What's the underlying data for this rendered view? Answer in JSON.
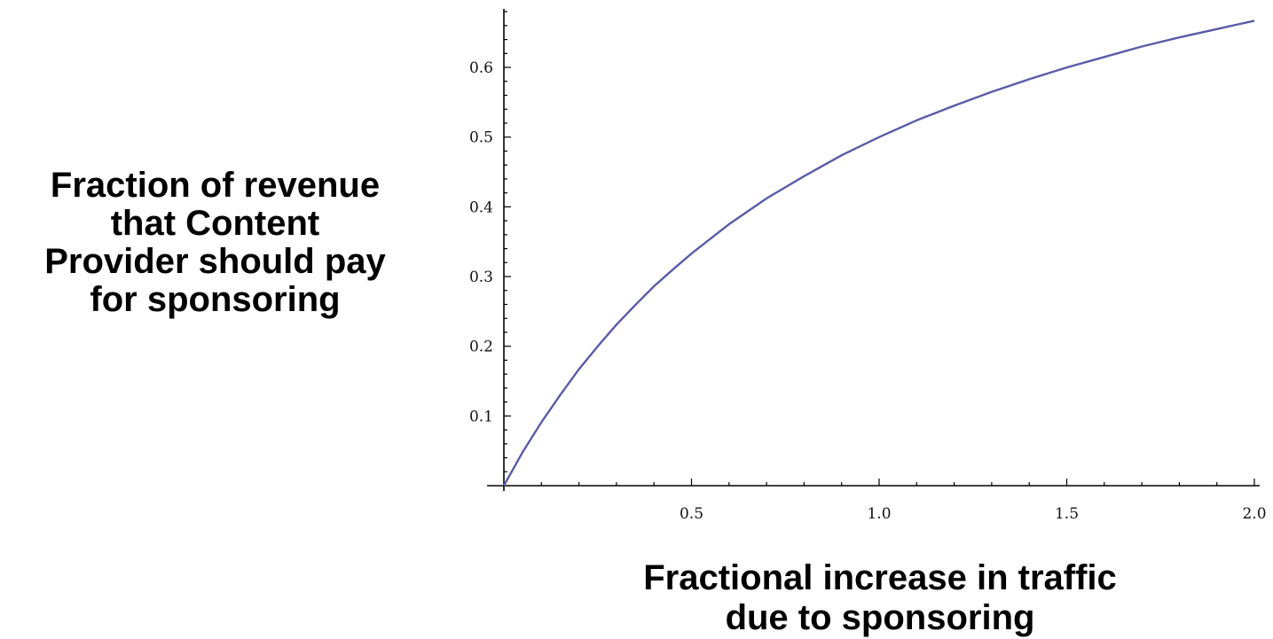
{
  "chart_data": {
    "type": "line",
    "title": "",
    "ylabel_lines": [
      "Fraction of revenue",
      "that Content",
      "Provider should pay",
      "for sponsoring"
    ],
    "xlabel_lines": [
      "Fractional increase in traffic",
      "due to sponsoring"
    ],
    "xlim": [
      0,
      2.0
    ],
    "ylim": [
      0,
      0.67
    ],
    "x_ticks": [
      {
        "value": 0.5,
        "label": "0.5"
      },
      {
        "value": 1.0,
        "label": "1.0"
      },
      {
        "value": 1.5,
        "label": "1.5"
      },
      {
        "value": 2.0,
        "label": "2.0"
      }
    ],
    "y_ticks": [
      {
        "value": 0.1,
        "label": "0.1"
      },
      {
        "value": 0.2,
        "label": "0.2"
      },
      {
        "value": 0.3,
        "label": "0.3"
      },
      {
        "value": 0.4,
        "label": "0.4"
      },
      {
        "value": 0.5,
        "label": "0.5"
      },
      {
        "value": 0.6,
        "label": "0.6"
      }
    ],
    "grid": false,
    "line_color": "#5b5ba8",
    "series": [
      {
        "x": [
          0,
          0.05,
          0.1,
          0.15,
          0.2,
          0.25,
          0.3,
          0.35,
          0.4,
          0.45,
          0.5,
          0.6,
          0.7,
          0.8,
          0.9,
          1.0,
          1.1,
          1.2,
          1.3,
          1.4,
          1.5,
          1.6,
          1.7,
          1.8,
          1.9,
          2.0
        ],
        "values": [
          0,
          0.048,
          0.091,
          0.13,
          0.167,
          0.2,
          0.231,
          0.259,
          0.286,
          0.31,
          0.333,
          0.375,
          0.412,
          0.444,
          0.474,
          0.5,
          0.524,
          0.545,
          0.565,
          0.583,
          0.6,
          0.615,
          0.63,
          0.643,
          0.655,
          0.667
        ]
      }
    ]
  }
}
